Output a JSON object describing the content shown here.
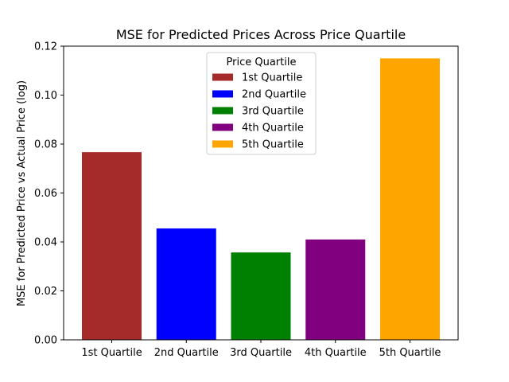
{
  "chart_data": {
    "type": "bar",
    "title": "MSE for Predicted Prices Across Price Quartile",
    "xlabel": "",
    "ylabel": "MSE for Predicted Price vs Actual Price (log)",
    "categories": [
      "1st Quartile",
      "2nd Quartile",
      "3rd Quartile",
      "4th Quartile",
      "5th Quartile"
    ],
    "values": [
      0.0767,
      0.0455,
      0.0357,
      0.041,
      0.115
    ],
    "colors": [
      "#a52a2a",
      "#0000ff",
      "#008000",
      "#800080",
      "#ffa500"
    ],
    "ylim": [
      0,
      0.12
    ],
    "yticks": [
      "0.00",
      "0.02",
      "0.04",
      "0.06",
      "0.08",
      "0.10",
      "0.12"
    ],
    "grid": false,
    "legend": {
      "title": "Price Quartile",
      "placement": "upper-center",
      "entries": [
        "1st Quartile",
        "2nd Quartile",
        "3rd Quartile",
        "4th Quartile",
        "5th Quartile"
      ]
    }
  }
}
